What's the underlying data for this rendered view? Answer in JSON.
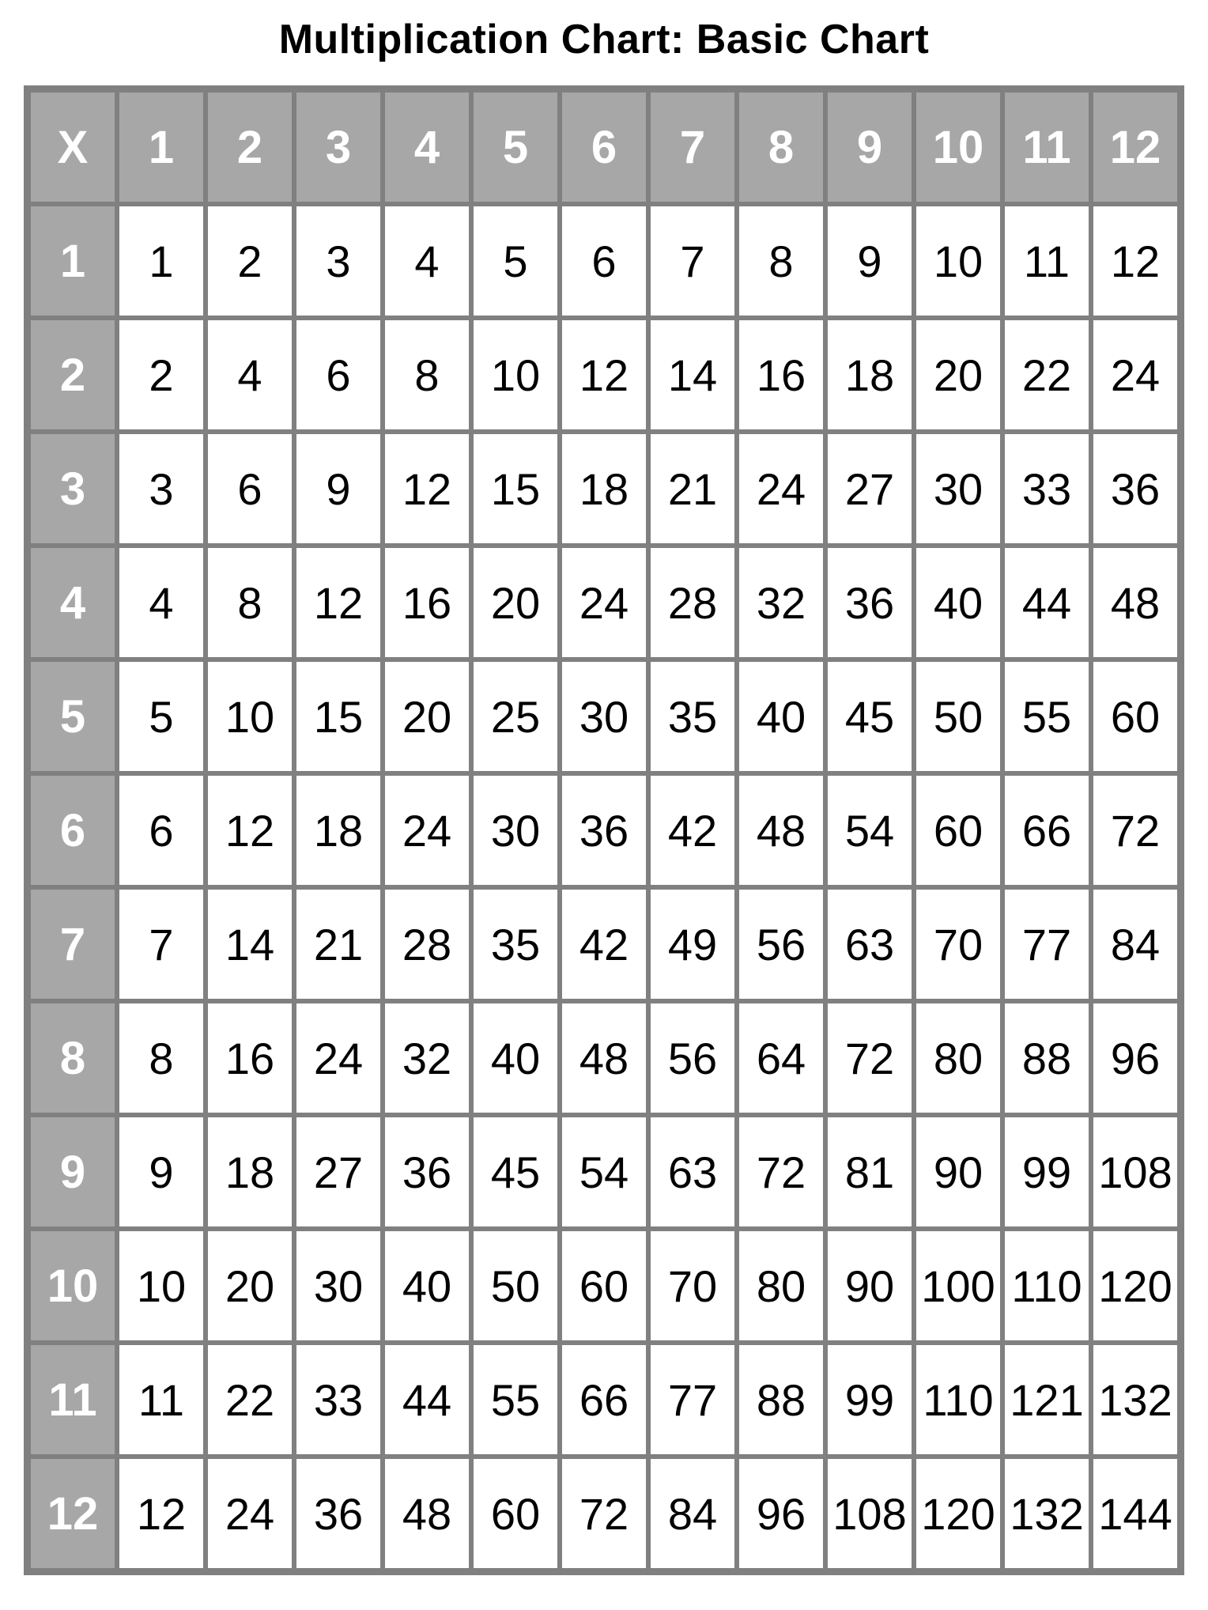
{
  "title": "Multiplication Chart: Basic Chart",
  "table": {
    "type": "table",
    "corner_label": "X",
    "col_headers": [
      "1",
      "2",
      "3",
      "4",
      "5",
      "6",
      "7",
      "8",
      "9",
      "10",
      "11",
      "12"
    ],
    "row_headers": [
      "1",
      "2",
      "3",
      "4",
      "5",
      "6",
      "7",
      "8",
      "9",
      "10",
      "11",
      "12"
    ],
    "rows": [
      [
        "1",
        "2",
        "3",
        "4",
        "5",
        "6",
        "7",
        "8",
        "9",
        "10",
        "11",
        "12"
      ],
      [
        "2",
        "4",
        "6",
        "8",
        "10",
        "12",
        "14",
        "16",
        "18",
        "20",
        "22",
        "24"
      ],
      [
        "3",
        "6",
        "9",
        "12",
        "15",
        "18",
        "21",
        "24",
        "27",
        "30",
        "33",
        "36"
      ],
      [
        "4",
        "8",
        "12",
        "16",
        "20",
        "24",
        "28",
        "32",
        "36",
        "40",
        "44",
        "48"
      ],
      [
        "5",
        "10",
        "15",
        "20",
        "25",
        "30",
        "35",
        "40",
        "45",
        "50",
        "55",
        "60"
      ],
      [
        "6",
        "12",
        "18",
        "24",
        "30",
        "36",
        "42",
        "48",
        "54",
        "60",
        "66",
        "72"
      ],
      [
        "7",
        "14",
        "21",
        "28",
        "35",
        "42",
        "49",
        "56",
        "63",
        "70",
        "77",
        "84"
      ],
      [
        "8",
        "16",
        "24",
        "32",
        "40",
        "48",
        "56",
        "64",
        "72",
        "80",
        "88",
        "96"
      ],
      [
        "9",
        "18",
        "27",
        "36",
        "45",
        "54",
        "63",
        "72",
        "81",
        "90",
        "99",
        "108"
      ],
      [
        "10",
        "20",
        "30",
        "40",
        "50",
        "60",
        "70",
        "80",
        "90",
        "100",
        "110",
        "120"
      ],
      [
        "11",
        "22",
        "33",
        "44",
        "55",
        "66",
        "77",
        "88",
        "99",
        "110",
        "121",
        "132"
      ],
      [
        "12",
        "24",
        "36",
        "48",
        "60",
        "72",
        "84",
        "96",
        "108",
        "120",
        "132",
        "144"
      ]
    ],
    "header_bg": "#a7a7a7",
    "header_text_color": "#ffffff",
    "cell_bg": "#ffffff",
    "cell_text_color": "#000000",
    "border_color": "#808080",
    "title_fontsize": 52,
    "header_fontsize": 58,
    "cell_fontsize": 56
  }
}
